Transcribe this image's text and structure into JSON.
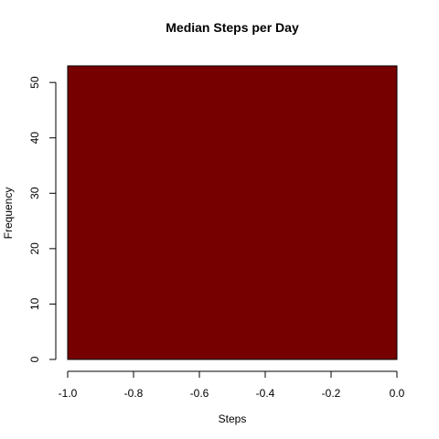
{
  "chart_data": {
    "type": "bar",
    "title": "Median Steps per Day",
    "xlabel": "Steps",
    "ylabel": "Frequency",
    "bins": [
      {
        "x0": -1.0,
        "x1": 0.0,
        "count": 53
      }
    ],
    "xlim": [
      -1.0,
      0.0
    ],
    "ylim": [
      0,
      53
    ],
    "x_ticks": [
      -1.0,
      -0.8,
      -0.6,
      -0.4,
      -0.2,
      0.0
    ],
    "x_tick_labels": [
      "-1.0",
      "-0.8",
      "-0.6",
      "-0.4",
      "-0.2",
      "0.0"
    ],
    "y_ticks": [
      0,
      10,
      20,
      30,
      40,
      50
    ],
    "y_tick_labels": [
      "0",
      "10",
      "20",
      "30",
      "40",
      "50"
    ],
    "bar_color": "#760000",
    "grid": false
  }
}
